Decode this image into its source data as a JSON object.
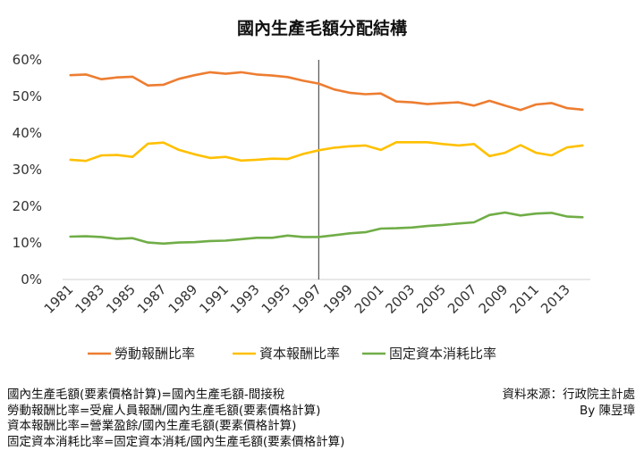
{
  "chart_data": {
    "type": "line",
    "title": "國內生產毛額分配結構",
    "x": [
      "1981",
      "1982",
      "1983",
      "1984",
      "1985",
      "1986",
      "1987",
      "1988",
      "1989",
      "1990",
      "1991",
      "1992",
      "1993",
      "1994",
      "1995",
      "1996",
      "1997",
      "1998",
      "1999",
      "2000",
      "2001",
      "2002",
      "2003",
      "2004",
      "2005",
      "2006",
      "2007",
      "2008",
      "2009",
      "2010",
      "2011",
      "2012",
      "2013",
      "2014"
    ],
    "x_tick_labels": [
      "1981",
      "1983",
      "1985",
      "1987",
      "1989",
      "1991",
      "1993",
      "1995",
      "1997",
      "1999",
      "2001",
      "2003",
      "2005",
      "2007",
      "2009",
      "2011",
      "2013"
    ],
    "ylim": [
      0,
      60
    ],
    "y_tick_labels": [
      "0%",
      "10%",
      "20%",
      "30%",
      "40%",
      "50%",
      "60%"
    ],
    "marker_line_x": "1997",
    "legend_position": "bottom",
    "grid": false,
    "series": [
      {
        "name": "勞動報酬比率",
        "color": "#ed7d31",
        "values": [
          55.8,
          56.0,
          54.7,
          55.2,
          55.4,
          53.0,
          53.2,
          54.8,
          55.8,
          56.6,
          56.2,
          56.6,
          56.0,
          55.7,
          55.3,
          54.3,
          53.5,
          51.9,
          51.0,
          50.6,
          50.8,
          48.6,
          48.4,
          47.9,
          48.2,
          48.4,
          47.5,
          48.8,
          47.5,
          46.3,
          47.8,
          48.2,
          46.8,
          46.4
        ]
      },
      {
        "name": "資本報酬比率",
        "color": "#ffc000",
        "values": [
          32.7,
          32.4,
          33.9,
          34.0,
          33.5,
          37.1,
          37.4,
          35.4,
          34.2,
          33.2,
          33.5,
          32.5,
          32.7,
          33.0,
          32.9,
          34.3,
          35.3,
          36.0,
          36.4,
          36.6,
          35.4,
          37.5,
          37.5,
          37.5,
          37.0,
          36.6,
          37.0,
          33.7,
          34.6,
          36.7,
          34.6,
          33.9,
          36.1,
          36.6
        ]
      },
      {
        "name": "固定資本消耗比率",
        "color": "#70ad47",
        "values": [
          11.7,
          11.8,
          11.6,
          11.1,
          11.3,
          10.1,
          9.8,
          10.1,
          10.2,
          10.5,
          10.6,
          11.0,
          11.4,
          11.4,
          12.0,
          11.6,
          11.6,
          12.1,
          12.6,
          12.9,
          13.9,
          14.0,
          14.2,
          14.6,
          14.9,
          15.3,
          15.6,
          17.6,
          18.3,
          17.5,
          18.0,
          18.2,
          17.2,
          17.0
        ]
      }
    ]
  },
  "notes": [
    "國內生產毛額(要素價格計算)=國內生產毛額-間接稅",
    "勞動報酬比率=受雇人員報酬/國內生產毛額(要素價格計算)",
    "資本報酬比率=營業盈餘/國內生產毛額(要素價格計算)",
    "固定資本消耗比率=固定資本消耗/國內生產毛額(要素價格計算)"
  ],
  "source": {
    "line1": "資料來源：行政院主計處",
    "line2": "By 陳昱璋"
  }
}
